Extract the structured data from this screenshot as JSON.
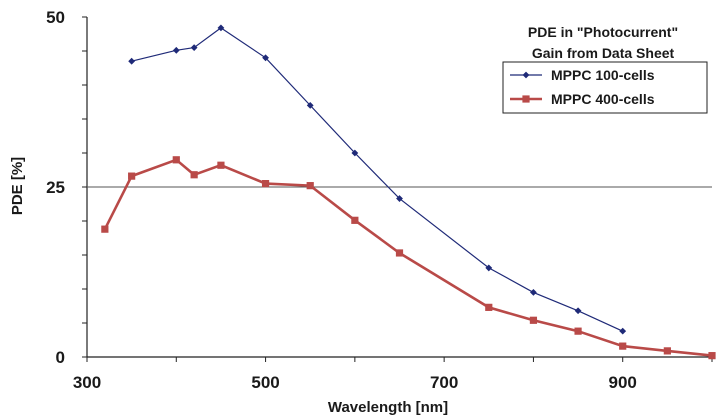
{
  "chart_data": {
    "type": "line",
    "xlabel": "Wavelength [nm]",
    "ylabel": "PDE [%]",
    "xlim": [
      300,
      1000
    ],
    "ylim": [
      0,
      50
    ],
    "x_ticks": [
      "300",
      "500",
      "700",
      "900"
    ],
    "y_ticks": [
      "0",
      "25",
      "50"
    ],
    "grid": "horizontal line at 25",
    "legend_placement": "top-right",
    "legend_title": [
      "PDE in \"Photocurrent\"",
      "Gain from Data Sheet"
    ],
    "series": [
      {
        "name": "MPPC 100-cells",
        "color": "#1f2a78",
        "marker": "diamond",
        "x": [
          350,
          400,
          420,
          450,
          500,
          550,
          600,
          650,
          750,
          800,
          850,
          900
        ],
        "y": [
          43.5,
          45.1,
          45.5,
          48.4,
          44.0,
          37.0,
          30.0,
          23.3,
          13.1,
          9.5,
          6.8,
          3.8
        ]
      },
      {
        "name": "MPPC 400-cells",
        "color": "#b94a48",
        "marker": "square",
        "x": [
          320,
          350,
          400,
          420,
          450,
          500,
          550,
          600,
          650,
          750,
          800,
          850,
          900,
          950,
          1000
        ],
        "y": [
          18.8,
          26.6,
          29.0,
          26.8,
          28.2,
          25.5,
          25.2,
          20.1,
          15.3,
          7.3,
          5.4,
          3.8,
          1.6,
          0.9,
          0.2
        ]
      }
    ]
  }
}
